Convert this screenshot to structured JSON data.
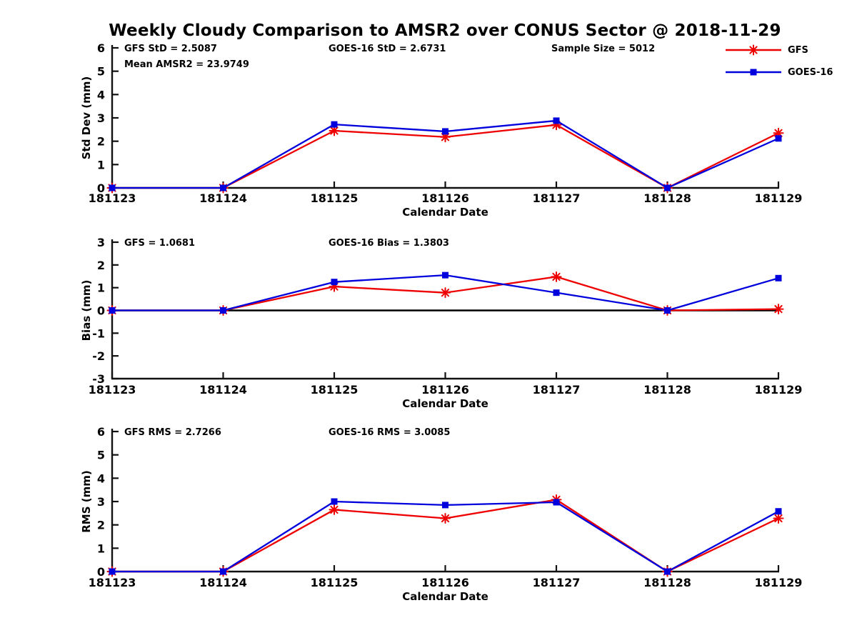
{
  "title": "Weekly Cloudy Comparison to AMSR2 over CONUS Sector @ 2018-11-29",
  "legend": {
    "entries": [
      {
        "label": "GFS",
        "color": "#ee0000",
        "marker": "asterisk"
      },
      {
        "label": "GOES-16",
        "color": "#0000dd",
        "marker": "square"
      }
    ]
  },
  "chart_data": [
    {
      "type": "line",
      "xlabel": "Calendar Date",
      "ylabel": "Std Dev (mm)",
      "ylim": [
        0,
        6
      ],
      "yticks": [
        0,
        1,
        2,
        3,
        4,
        5,
        6
      ],
      "grid": false,
      "legend_position": "top-right-outside",
      "categories": [
        "181123",
        "181124",
        "181125",
        "181126",
        "181127",
        "181128",
        "181129"
      ],
      "series": [
        {
          "name": "GFS",
          "color": "#ee0000",
          "marker": "asterisk",
          "values": [
            0,
            0,
            2.45,
            2.18,
            2.7,
            0,
            2.35
          ]
        },
        {
          "name": "GOES-16",
          "color": "#0000dd",
          "marker": "square",
          "values": [
            0,
            0,
            2.72,
            2.42,
            2.88,
            0,
            2.12
          ]
        }
      ],
      "annotations": [
        {
          "slot": "left",
          "line": 1,
          "text": "GFS StD = 2.5087"
        },
        {
          "slot": "left",
          "line": 2,
          "text": "Mean AMSR2 = 23.9749"
        },
        {
          "slot": "center",
          "line": 1,
          "text": "GOES-16 StD = 2.6731"
        },
        {
          "slot": "right",
          "line": 1,
          "text": "Sample Size = 5012"
        }
      ],
      "zero_line": false
    },
    {
      "type": "line",
      "xlabel": "Calendar Date",
      "ylabel": "Bias (mm)",
      "ylim": [
        -3,
        3
      ],
      "yticks": [
        -3,
        -2,
        -1,
        0,
        1,
        2,
        3
      ],
      "grid": false,
      "categories": [
        "181123",
        "181124",
        "181125",
        "181126",
        "181127",
        "181128",
        "181129"
      ],
      "series": [
        {
          "name": "GFS",
          "color": "#ee0000",
          "marker": "asterisk",
          "values": [
            0,
            0,
            1.05,
            0.78,
            1.48,
            0,
            0.06
          ]
        },
        {
          "name": "GOES-16",
          "color": "#0000dd",
          "marker": "square",
          "values": [
            0,
            0,
            1.25,
            1.55,
            0.78,
            0,
            1.42
          ]
        }
      ],
      "annotations": [
        {
          "slot": "left",
          "line": 1,
          "text": "GFS = 1.0681"
        },
        {
          "slot": "center",
          "line": 1,
          "text": "GOES-16 Bias  = 1.3803"
        }
      ],
      "zero_line": true
    },
    {
      "type": "line",
      "xlabel": "Calendar Date",
      "ylabel": "RMS (mm)",
      "ylim": [
        0,
        6
      ],
      "yticks": [
        0,
        1,
        2,
        3,
        4,
        5,
        6
      ],
      "grid": false,
      "categories": [
        "181123",
        "181124",
        "181125",
        "181126",
        "181127",
        "181128",
        "181129"
      ],
      "series": [
        {
          "name": "GFS",
          "color": "#ee0000",
          "marker": "asterisk",
          "values": [
            0,
            0,
            2.65,
            2.28,
            3.08,
            0,
            2.28
          ]
        },
        {
          "name": "GOES-16",
          "color": "#0000dd",
          "marker": "square",
          "values": [
            0,
            0,
            3.0,
            2.85,
            2.97,
            0,
            2.58
          ]
        }
      ],
      "annotations": [
        {
          "slot": "left",
          "line": 1,
          "text": "GFS RMS = 2.7266"
        },
        {
          "slot": "center",
          "line": 1,
          "text": "GOES-16 RMS = 3.0085"
        }
      ],
      "zero_line": false
    }
  ]
}
